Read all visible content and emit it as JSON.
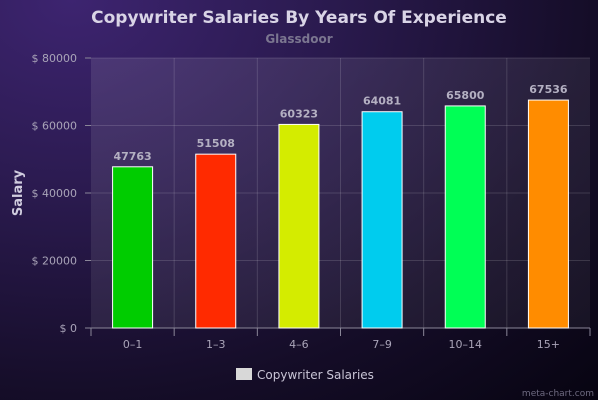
{
  "chart_data": {
    "type": "bar",
    "title": "Copywriter Salaries By Years Of Experience",
    "subtitle": "Glassdoor",
    "xlabel": "",
    "ylabel": "Salary",
    "categories": [
      "0–1",
      "1–3",
      "4–6",
      "7–9",
      "10–14",
      "15+"
    ],
    "series": [
      {
        "name": "Copywriter Salaries",
        "values": [
          47763,
          51508,
          60323,
          64081,
          65800,
          67536
        ],
        "colors": [
          "#00cc00",
          "#ff2a00",
          "#d4ec00",
          "#00ccee",
          "#00ff55",
          "#ff8c00"
        ]
      }
    ],
    "ylim": [
      0,
      80000
    ],
    "yticks": [
      0,
      20000,
      40000,
      60000,
      80000
    ],
    "ytick_labels": [
      "$ 0",
      "$ 20000",
      "$ 40000",
      "$ 60000",
      "$ 80000"
    ],
    "grid": true,
    "legend_position": "bottom",
    "legend_color": "#d8d8d8"
  },
  "credit": "meta-chart.com"
}
